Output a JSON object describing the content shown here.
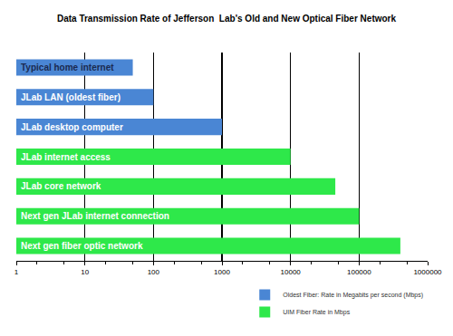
{
  "chart_data": {
    "type": "bar",
    "orientation": "horizontal",
    "title": "Data Transmission Rate of Jefferson  Lab's Old and New Optical Fiber Network",
    "categories": [
      "Typical home internet",
      "JLab LAN (oldest fiber)",
      "JLab desktop computer",
      "JLab internet access",
      "JLab core network",
      "Next gen JLab internet connection",
      "Next gen fiber optic network"
    ],
    "series": [
      {
        "name": "Oldest Fiber: Rate in Megabits per second (Mbps)",
        "color": "#4a86d4",
        "values": [
          50,
          100,
          1000,
          null,
          null,
          null,
          null
        ]
      },
      {
        "name": "UIM Fiber Rate in Mbps",
        "color": "#2ee84a",
        "values": [
          null,
          null,
          null,
          10000,
          45000,
          100000,
          400000
        ]
      }
    ],
    "log": "x",
    "xlim": [
      1,
      1000000
    ],
    "xticks": [
      1,
      10,
      100,
      1000,
      10000,
      100000,
      1000000
    ],
    "grid": true,
    "legend": "bottom right",
    "tick_labels": "x"
  }
}
